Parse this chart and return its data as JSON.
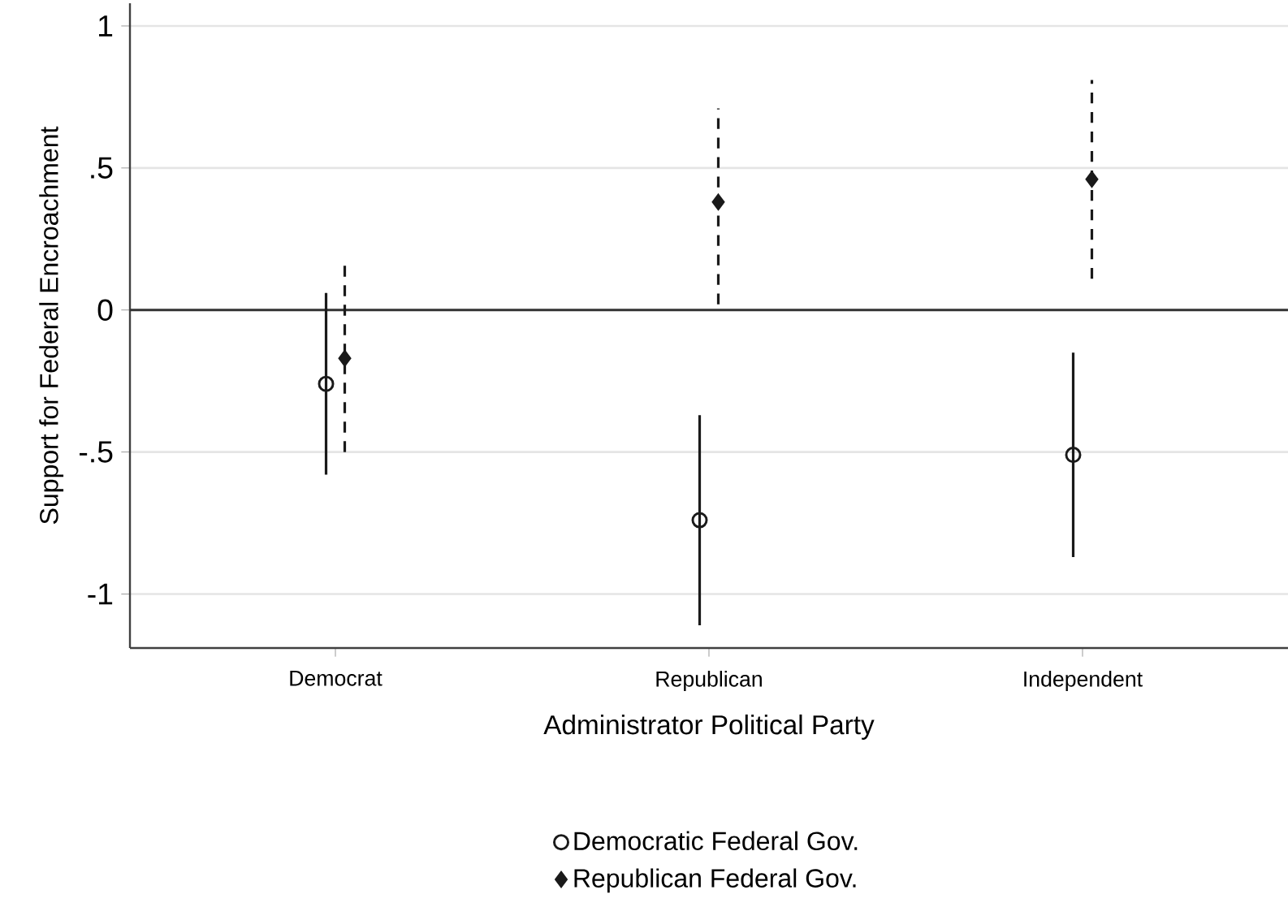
{
  "chart_data": {
    "type": "scatter",
    "xlabel": "Administrator Political Party",
    "ylabel": "Support for Federal Encroachment",
    "categories": [
      "Democrat",
      "Republican",
      "Independent"
    ],
    "series": [
      {
        "name": "Democratic Federal Gov.",
        "color": "#1a1a1a",
        "marker": "circle",
        "line_style": "solid",
        "values": [
          -0.26,
          -0.74,
          -0.51
        ],
        "errors": [
          [
            -0.58,
            0.06
          ],
          [
            -1.11,
            -0.37
          ],
          [
            -0.87,
            -0.15
          ]
        ]
      },
      {
        "name": "Republican Federal Gov.",
        "color": "#1a1a1a",
        "marker": "diamond",
        "line_style": "dashed",
        "values": [
          -0.17,
          0.38,
          0.46
        ],
        "errors": [
          [
            -0.5,
            0.16
          ],
          [
            0.02,
            0.71
          ],
          [
            0.11,
            0.81
          ]
        ]
      }
    ],
    "ylim": [
      -1.19,
      1.08
    ],
    "yticks": [
      -1,
      {
        "value": -0.5,
        "label": "-.5"
      },
      0,
      {
        "value": 0.5,
        "label": ".5"
      },
      1
    ],
    "ref_lines": [
      {
        "axis": "y",
        "value": 0,
        "color": "#333333"
      }
    ],
    "grid": "y",
    "legend": "bottom"
  }
}
